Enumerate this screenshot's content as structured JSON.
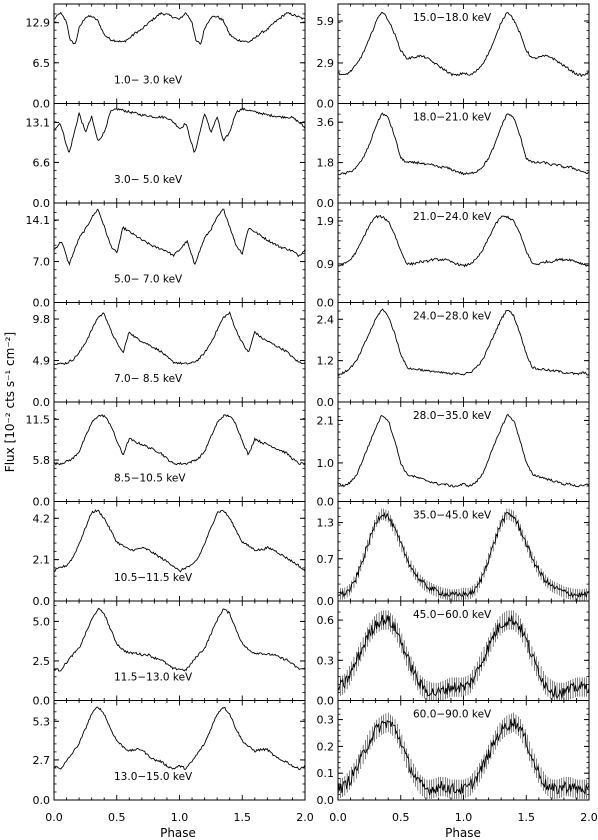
{
  "chart_data": {
    "type": "line",
    "figure": {
      "xlabel": "Phase",
      "ylabel": "Flux [10⁻² cts s⁻¹ cm⁻²]",
      "xlim": [
        0.0,
        2.0
      ],
      "xticks": [
        "0.0",
        "0.5",
        "1.0",
        "1.5",
        "2.0"
      ]
    },
    "panels": [
      {
        "label": "1.0− 3.0 keV",
        "ylim": [
          0,
          15.4
        ],
        "yticks": [
          0.0,
          6.5,
          12.9
        ],
        "ytick_labels": [
          "0.0",
          "6.5",
          "12.9"
        ],
        "x": [
          0.0,
          0.05,
          0.1,
          0.13,
          0.17,
          0.2,
          0.25,
          0.3,
          0.35,
          0.4,
          0.45,
          0.5,
          0.55,
          0.6,
          0.65,
          0.7,
          0.75,
          0.8,
          0.85,
          0.9,
          0.95,
          1.0
        ],
        "y": [
          13.4,
          14.5,
          13.0,
          10.0,
          9.5,
          12.0,
          13.8,
          13.9,
          13.2,
          11.0,
          10.2,
          10.0,
          9.8,
          10.4,
          11.3,
          11.8,
          12.8,
          13.6,
          14.4,
          14.2,
          13.8,
          13.4
        ]
      },
      {
        "label": "3.0− 5.0 keV",
        "ylim": [
          0,
          15.7
        ],
        "yticks": [
          0.0,
          6.6,
          13.1
        ],
        "ytick_labels": [
          "0.0",
          "6.6",
          "13.1"
        ],
        "x": [
          0.0,
          0.05,
          0.12,
          0.2,
          0.25,
          0.3,
          0.35,
          0.4,
          0.45,
          0.5,
          0.55,
          0.6,
          0.65,
          0.7,
          0.75,
          0.8,
          0.85,
          0.9,
          0.95,
          1.0
        ],
        "y": [
          12.0,
          13.0,
          8.0,
          14.6,
          11.5,
          14.0,
          10.0,
          11.5,
          14.8,
          15.3,
          15.1,
          14.8,
          14.6,
          14.3,
          14.2,
          14.0,
          14.0,
          13.9,
          13.2,
          12.2
        ]
      },
      {
        "label": "5.0− 7.0 keV",
        "ylim": [
          0,
          16.5
        ],
        "yticks": [
          0.0,
          7.0,
          14.1
        ],
        "ytick_labels": [
          "0.0",
          "7.0",
          "14.1"
        ],
        "x": [
          0.0,
          0.06,
          0.12,
          0.2,
          0.25,
          0.3,
          0.35,
          0.4,
          0.45,
          0.5,
          0.55,
          0.6,
          0.65,
          0.7,
          0.75,
          0.8,
          0.85,
          0.9,
          0.95,
          1.0
        ],
        "y": [
          9.0,
          10.5,
          6.5,
          11.0,
          12.5,
          14.5,
          16.0,
          13.0,
          9.8,
          8.4,
          12.8,
          12.1,
          11.4,
          10.7,
          10.1,
          9.5,
          9.2,
          8.8,
          8.0,
          9.0
        ]
      },
      {
        "label": "7.0− 8.5 keV",
        "ylim": [
          0,
          11.4
        ],
        "yticks": [
          0.0,
          4.9,
          9.8
        ],
        "ytick_labels": [
          "0.0",
          "4.9",
          "9.8"
        ],
        "x": [
          0.0,
          0.05,
          0.1,
          0.15,
          0.2,
          0.25,
          0.3,
          0.35,
          0.4,
          0.45,
          0.5,
          0.55,
          0.6,
          0.65,
          0.7,
          0.75,
          0.8,
          0.85,
          0.9,
          0.95,
          1.0
        ],
        "y": [
          4.6,
          4.5,
          4.6,
          5.0,
          5.8,
          7.0,
          8.5,
          10.0,
          10.5,
          8.5,
          7.0,
          5.8,
          8.3,
          7.6,
          7.2,
          6.8,
          6.4,
          6.0,
          5.3,
          4.7,
          4.6
        ]
      },
      {
        "label": "8.5−10.5 keV",
        "ylim": [
          0,
          13.5
        ],
        "yticks": [
          0.0,
          5.8,
          11.5
        ],
        "ytick_labels": [
          "0.0",
          "5.8",
          "11.5"
        ],
        "x": [
          0.0,
          0.05,
          0.1,
          0.15,
          0.2,
          0.25,
          0.3,
          0.35,
          0.4,
          0.45,
          0.5,
          0.55,
          0.6,
          0.65,
          0.7,
          0.75,
          0.8,
          0.85,
          0.9,
          0.95,
          1.0
        ],
        "y": [
          5.3,
          5.3,
          5.6,
          6.0,
          7.0,
          9.0,
          11.0,
          12.0,
          12.0,
          10.8,
          8.5,
          6.5,
          8.8,
          8.3,
          8.0,
          7.6,
          7.2,
          6.8,
          6.0,
          5.3,
          5.3
        ]
      },
      {
        "label": "10.5−11.5 keV",
        "ylim": [
          0,
          4.9
        ],
        "yticks": [
          0.0,
          2.1,
          4.2
        ],
        "ytick_labels": [
          "0.0",
          "2.1",
          "4.2"
        ],
        "x": [
          0.0,
          0.05,
          0.1,
          0.15,
          0.2,
          0.25,
          0.3,
          0.35,
          0.4,
          0.45,
          0.5,
          0.55,
          0.6,
          0.65,
          0.7,
          0.75,
          0.8,
          0.85,
          0.9,
          0.95,
          1.0
        ],
        "y": [
          1.5,
          1.7,
          1.8,
          2.2,
          2.9,
          3.7,
          4.5,
          4.6,
          4.2,
          3.6,
          3.0,
          2.8,
          2.6,
          2.6,
          2.7,
          2.6,
          2.4,
          2.2,
          2.0,
          1.8,
          1.5
        ]
      },
      {
        "label": "11.5−13.0 keV",
        "ylim": [
          0,
          6.1
        ],
        "yticks": [
          0.0,
          2.5,
          5.0
        ],
        "ytick_labels": [
          "0.0",
          "2.5",
          "5.0"
        ],
        "x": [
          0.0,
          0.05,
          0.1,
          0.15,
          0.2,
          0.25,
          0.3,
          0.35,
          0.4,
          0.45,
          0.5,
          0.55,
          0.6,
          0.65,
          0.7,
          0.75,
          0.8,
          0.85,
          0.9,
          0.95,
          1.0
        ],
        "y": [
          2.0,
          1.9,
          2.4,
          2.9,
          3.3,
          4.2,
          5.1,
          5.8,
          5.5,
          4.5,
          3.6,
          3.2,
          3.0,
          3.0,
          2.9,
          2.9,
          2.7,
          2.6,
          2.3,
          2.0,
          2.0
        ]
      },
      {
        "label": "13.0−15.0 keV",
        "ylim": [
          0,
          6.5
        ],
        "yticks": [
          0.0,
          2.7,
          5.3
        ],
        "ytick_labels": [
          "0.0",
          "2.7",
          "5.3"
        ],
        "x": [
          0.0,
          0.05,
          0.1,
          0.15,
          0.2,
          0.25,
          0.3,
          0.35,
          0.4,
          0.45,
          0.5,
          0.55,
          0.6,
          0.65,
          0.7,
          0.75,
          0.8,
          0.85,
          0.9,
          0.95,
          1.0
        ],
        "y": [
          2.3,
          2.1,
          2.6,
          3.2,
          3.8,
          4.8,
          5.8,
          6.3,
          5.8,
          4.8,
          4.0,
          3.6,
          3.3,
          3.4,
          3.4,
          3.0,
          2.7,
          2.6,
          2.3,
          2.1,
          2.3
        ]
      },
      {
        "label": "15.0−18.0 keV",
        "ylim": [
          0,
          6.9
        ],
        "yticks": [
          0.0,
          2.9,
          5.9
        ],
        "ytick_labels": [
          "0.0",
          "2.9",
          "5.9"
        ],
        "x": [
          0.0,
          0.05,
          0.1,
          0.15,
          0.2,
          0.25,
          0.3,
          0.35,
          0.4,
          0.45,
          0.5,
          0.55,
          0.6,
          0.65,
          0.7,
          0.75,
          0.8,
          0.85,
          0.9,
          0.95,
          1.0
        ],
        "y": [
          2.2,
          2.0,
          2.3,
          2.8,
          3.6,
          4.6,
          5.8,
          6.6,
          6.0,
          5.0,
          3.8,
          3.2,
          3.3,
          3.4,
          3.3,
          3.0,
          2.7,
          2.4,
          2.1,
          2.0,
          2.2
        ]
      },
      {
        "label": "18.0−21.0 keV",
        "ylim": [
          0,
          4.3
        ],
        "yticks": [
          0.0,
          1.8,
          3.6
        ],
        "ytick_labels": [
          "0.0",
          "1.8",
          "3.6"
        ],
        "x": [
          0.0,
          0.05,
          0.1,
          0.15,
          0.2,
          0.25,
          0.3,
          0.35,
          0.4,
          0.45,
          0.5,
          0.55,
          0.6,
          0.65,
          0.7,
          0.75,
          0.8,
          0.85,
          0.9,
          0.95,
          1.0
        ],
        "y": [
          1.3,
          1.3,
          1.4,
          1.6,
          2.0,
          2.6,
          3.4,
          4.0,
          3.8,
          3.0,
          2.0,
          1.8,
          1.8,
          1.8,
          1.7,
          1.7,
          1.6,
          1.6,
          1.5,
          1.4,
          1.3
        ]
      },
      {
        "label": "21.0−24.0 keV",
        "ylim": [
          0,
          2.25
        ],
        "yticks": [
          0.0,
          0.9,
          1.9
        ],
        "ytick_labels": [
          "0.0",
          "0.9",
          "1.9"
        ],
        "x": [
          0.0,
          0.05,
          0.1,
          0.15,
          0.2,
          0.25,
          0.3,
          0.35,
          0.4,
          0.45,
          0.5,
          0.55,
          0.6,
          0.65,
          0.7,
          0.75,
          0.8,
          0.85,
          0.9,
          0.95,
          1.0
        ],
        "y": [
          0.85,
          0.9,
          1.0,
          1.2,
          1.5,
          1.8,
          2.0,
          2.0,
          1.9,
          1.6,
          1.2,
          0.9,
          0.9,
          0.95,
          0.95,
          1.0,
          1.0,
          1.0,
          0.95,
          0.9,
          0.85
        ]
      },
      {
        "label": "24.0−28.0 keV",
        "ylim": [
          0,
          2.8
        ],
        "yticks": [
          0.0,
          1.2,
          2.4
        ],
        "ytick_labels": [
          "0.0",
          "1.2",
          "2.4"
        ],
        "x": [
          0.0,
          0.05,
          0.1,
          0.15,
          0.2,
          0.25,
          0.3,
          0.35,
          0.4,
          0.45,
          0.5,
          0.55,
          0.6,
          0.65,
          0.7,
          0.75,
          0.8,
          0.85,
          0.9,
          0.95,
          1.0
        ],
        "y": [
          0.8,
          0.85,
          1.0,
          1.2,
          1.6,
          2.0,
          2.4,
          2.7,
          2.5,
          2.0,
          1.4,
          1.0,
          0.95,
          0.95,
          0.9,
          0.9,
          0.85,
          0.85,
          0.8,
          0.85,
          0.8
        ]
      },
      {
        "label": "28.0−35.0 keV",
        "ylim": [
          0,
          2.5
        ],
        "yticks": [
          0.0,
          1.0,
          2.1
        ],
        "ytick_labels": [
          "0.0",
          "1.0",
          "2.1"
        ],
        "x": [
          0.0,
          0.05,
          0.1,
          0.15,
          0.2,
          0.25,
          0.3,
          0.35,
          0.4,
          0.45,
          0.5,
          0.55,
          0.6,
          0.65,
          0.7,
          0.75,
          0.8,
          0.85,
          0.9,
          0.95,
          1.0
        ],
        "y": [
          0.45,
          0.4,
          0.5,
          0.7,
          1.1,
          1.5,
          1.9,
          2.25,
          2.1,
          1.6,
          1.0,
          0.7,
          0.65,
          0.6,
          0.55,
          0.5,
          0.45,
          0.45,
          0.4,
          0.4,
          0.45
        ]
      },
      {
        "label": "35.0−45.0 keV",
        "ylim": [
          0,
          1.6
        ],
        "yticks": [
          0.0,
          0.7,
          1.3
        ],
        "ytick_labels": [
          "0.0",
          "0.7",
          "1.3"
        ],
        "x": [
          0.0,
          0.05,
          0.1,
          0.15,
          0.2,
          0.25,
          0.3,
          0.35,
          0.4,
          0.45,
          0.5,
          0.55,
          0.6,
          0.65,
          0.7,
          0.75,
          0.8,
          0.85,
          0.9,
          0.95,
          1.0
        ],
        "y": [
          0.12,
          0.12,
          0.2,
          0.4,
          0.7,
          1.0,
          1.3,
          1.45,
          1.4,
          1.2,
          0.95,
          0.7,
          0.5,
          0.35,
          0.25,
          0.2,
          0.15,
          0.12,
          0.1,
          0.1,
          0.12
        ]
      },
      {
        "label": "45.0−60.0 keV",
        "ylim": [
          0,
          0.72
        ],
        "yticks": [
          0.0,
          0.3,
          0.6
        ],
        "ytick_labels": [
          "0.0",
          "0.3",
          "0.6"
        ],
        "x": [
          0.0,
          0.05,
          0.1,
          0.15,
          0.2,
          0.25,
          0.3,
          0.35,
          0.4,
          0.45,
          0.5,
          0.55,
          0.6,
          0.65,
          0.7,
          0.75,
          0.8,
          0.85,
          0.9,
          0.95,
          1.0
        ],
        "y": [
          0.1,
          0.12,
          0.2,
          0.3,
          0.4,
          0.5,
          0.57,
          0.6,
          0.6,
          0.55,
          0.45,
          0.32,
          0.22,
          0.12,
          0.08,
          0.06,
          0.06,
          0.08,
          0.1,
          0.1,
          0.1
        ]
      },
      {
        "label": "60.0−90.0 keV",
        "ylim": [
          0,
          0.36
        ],
        "yticks": [
          0.0,
          0.1,
          0.2,
          0.3
        ],
        "ytick_labels": [
          "0.0",
          "0.1",
          "0.2",
          "0.3"
        ],
        "x": [
          0.0,
          0.05,
          0.1,
          0.15,
          0.2,
          0.25,
          0.3,
          0.35,
          0.4,
          0.45,
          0.5,
          0.55,
          0.6,
          0.65,
          0.7,
          0.75,
          0.8,
          0.85,
          0.9,
          0.95,
          1.0
        ],
        "y": [
          0.04,
          0.05,
          0.08,
          0.12,
          0.17,
          0.22,
          0.26,
          0.28,
          0.29,
          0.27,
          0.22,
          0.15,
          0.1,
          0.06,
          0.04,
          0.04,
          0.05,
          0.05,
          0.04,
          0.04,
          0.04
        ]
      }
    ]
  }
}
